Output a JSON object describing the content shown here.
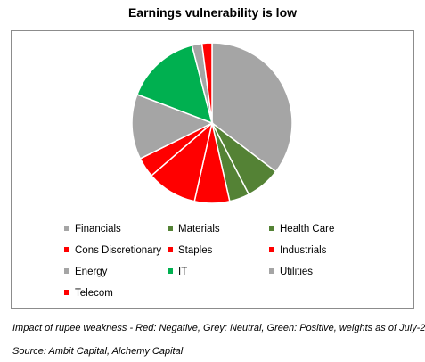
{
  "chart_data": {
    "type": "pie",
    "title": "Earnings vulnerability is low",
    "categories": [
      "Financials",
      "Materials",
      "Health Care",
      "Cons Discretionary",
      "Staples",
      "Industrials",
      "Energy",
      "IT",
      "Utilities",
      "Telecom"
    ],
    "values": [
      35,
      7,
      4,
      7,
      10,
      4,
      13,
      15,
      2,
      2
    ],
    "colors": [
      "#a5a5a5",
      "#548235",
      "#548235",
      "#ff0000",
      "#ff0000",
      "#ff0000",
      "#a5a5a5",
      "#00b050",
      "#a5a5a5",
      "#ff0000"
    ],
    "legend_position": "bottom"
  },
  "captions": {
    "note": "Impact of rupee weakness - Red: Negative, Grey: Neutral, Green: Positive, weights as of July-22",
    "source": "Source: Ambit Capital, Alchemy Capital"
  }
}
